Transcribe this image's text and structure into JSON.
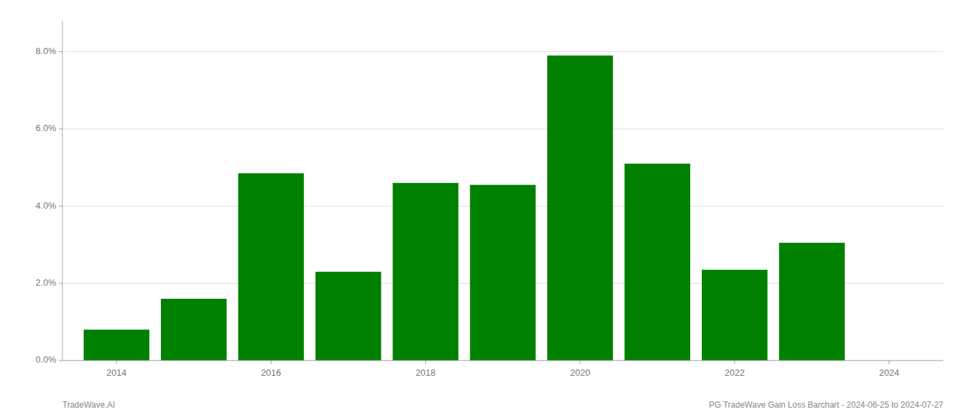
{
  "chart_data": {
    "type": "bar",
    "x": [
      2014,
      2015,
      2016,
      2017,
      2018,
      2019,
      2020,
      2021,
      2022,
      2023
    ],
    "values": [
      0.008,
      0.016,
      0.0485,
      0.023,
      0.046,
      0.0455,
      0.079,
      0.051,
      0.0235,
      0.0305
    ],
    "color": "#008000",
    "xlim": [
      2013.3,
      2024.7
    ],
    "xticks": [
      2014,
      2016,
      2018,
      2020,
      2022,
      2024
    ],
    "ylim": [
      0,
      0.088
    ],
    "yticks": [
      {
        "value": 0.0,
        "label": "0.0%"
      },
      {
        "value": 0.02,
        "label": "2.0%"
      },
      {
        "value": 0.04,
        "label": "4.0%"
      },
      {
        "value": 0.06,
        "label": "6.0%"
      },
      {
        "value": 0.08,
        "label": "8.0%"
      }
    ],
    "grid": true,
    "annotations": [
      "TradeWave.AI",
      "PG TradeWave Gain Loss Barchart - 2024-06-25 to 2024-07-27"
    ]
  }
}
